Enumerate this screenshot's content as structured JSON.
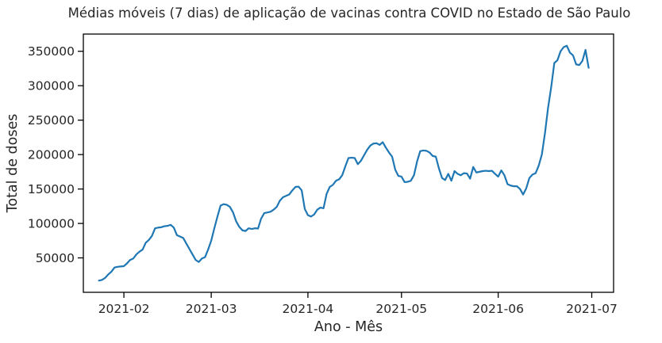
{
  "chart_data": {
    "type": "line",
    "title": "Médias móveis (7 dias) de aplicação de vacinas contra COVID no Estado de São Paulo",
    "xlabel": "Ano - Mês",
    "ylabel": "Total de doses",
    "x_ticks": [
      "2021-02",
      "2021-03",
      "2021-04",
      "2021-05",
      "2021-06",
      "2021-07"
    ],
    "y_ticks": [
      "50000",
      "100000",
      "150000",
      "200000",
      "250000",
      "300000",
      "350000"
    ],
    "x_range": [
      "2021-01-19",
      "2021-07-08"
    ],
    "ylim": [
      0,
      375000
    ],
    "grid": false,
    "line_color": "#1f77b4",
    "series": [
      {
        "values": [
          [
            "2021-01-24",
            17000
          ],
          [
            "2021-01-25",
            18000
          ],
          [
            "2021-01-26",
            21000
          ],
          [
            "2021-01-27",
            26000
          ],
          [
            "2021-01-28",
            30000
          ],
          [
            "2021-01-29",
            36000
          ],
          [
            "2021-01-30",
            37000
          ],
          [
            "2021-01-31",
            37500
          ],
          [
            "2021-02-01",
            38000
          ],
          [
            "2021-02-02",
            42000
          ],
          [
            "2021-02-03",
            47000
          ],
          [
            "2021-02-04",
            49000
          ],
          [
            "2021-02-05",
            55000
          ],
          [
            "2021-02-06",
            59000
          ],
          [
            "2021-02-07",
            62000
          ],
          [
            "2021-02-08",
            72000
          ],
          [
            "2021-02-09",
            76000
          ],
          [
            "2021-02-10",
            82000
          ],
          [
            "2021-02-11",
            93000
          ],
          [
            "2021-02-12",
            94000
          ],
          [
            "2021-02-13",
            94500
          ],
          [
            "2021-02-14",
            96000
          ],
          [
            "2021-02-15",
            96500
          ],
          [
            "2021-02-16",
            98000
          ],
          [
            "2021-02-17",
            94000
          ],
          [
            "2021-02-18",
            83000
          ],
          [
            "2021-02-19",
            81000
          ],
          [
            "2021-02-20",
            79000
          ],
          [
            "2021-02-21",
            71000
          ],
          [
            "2021-02-22",
            63000
          ],
          [
            "2021-02-23",
            55000
          ],
          [
            "2021-02-24",
            47000
          ],
          [
            "2021-02-25",
            44000
          ],
          [
            "2021-02-26",
            49000
          ],
          [
            "2021-02-27",
            51000
          ],
          [
            "2021-02-28",
            62000
          ],
          [
            "2021-03-01",
            75000
          ],
          [
            "2021-03-02",
            93000
          ],
          [
            "2021-03-03",
            110000
          ],
          [
            "2021-03-04",
            126000
          ],
          [
            "2021-03-05",
            128000
          ],
          [
            "2021-03-06",
            127000
          ],
          [
            "2021-03-07",
            124000
          ],
          [
            "2021-03-08",
            116000
          ],
          [
            "2021-03-09",
            103000
          ],
          [
            "2021-03-10",
            95000
          ],
          [
            "2021-03-11",
            90000
          ],
          [
            "2021-03-12",
            89000
          ],
          [
            "2021-03-13",
            93000
          ],
          [
            "2021-03-14",
            92000
          ],
          [
            "2021-03-15",
            93000
          ],
          [
            "2021-03-16",
            92500
          ],
          [
            "2021-03-17",
            107000
          ],
          [
            "2021-03-18",
            115000
          ],
          [
            "2021-03-19",
            116000
          ],
          [
            "2021-03-20",
            117000
          ],
          [
            "2021-03-21",
            120000
          ],
          [
            "2021-03-22",
            124000
          ],
          [
            "2021-03-23",
            133000
          ],
          [
            "2021-03-24",
            138000
          ],
          [
            "2021-03-25",
            140000
          ],
          [
            "2021-03-26",
            142000
          ],
          [
            "2021-03-27",
            148000
          ],
          [
            "2021-03-28",
            153000
          ],
          [
            "2021-03-29",
            153500
          ],
          [
            "2021-03-30",
            148000
          ],
          [
            "2021-03-31",
            121000
          ],
          [
            "2021-04-01",
            112000
          ],
          [
            "2021-04-02",
            110000
          ],
          [
            "2021-04-03",
            113000
          ],
          [
            "2021-04-04",
            120000
          ],
          [
            "2021-04-05",
            123000
          ],
          [
            "2021-04-06",
            122000
          ],
          [
            "2021-04-07",
            143000
          ],
          [
            "2021-04-08",
            153000
          ],
          [
            "2021-04-09",
            156000
          ],
          [
            "2021-04-10",
            162000
          ],
          [
            "2021-04-11",
            164000
          ],
          [
            "2021-04-12",
            170000
          ],
          [
            "2021-04-13",
            183000
          ],
          [
            "2021-04-14",
            195000
          ],
          [
            "2021-04-15",
            195500
          ],
          [
            "2021-04-16",
            195000
          ],
          [
            "2021-04-17",
            186000
          ],
          [
            "2021-04-18",
            191000
          ],
          [
            "2021-04-19",
            199000
          ],
          [
            "2021-04-20",
            207000
          ],
          [
            "2021-04-21",
            213000
          ],
          [
            "2021-04-22",
            216000
          ],
          [
            "2021-04-23",
            216500
          ],
          [
            "2021-04-24",
            214000
          ],
          [
            "2021-04-25",
            218000
          ],
          [
            "2021-04-26",
            210000
          ],
          [
            "2021-04-27",
            203000
          ],
          [
            "2021-04-28",
            197000
          ],
          [
            "2021-04-29",
            178000
          ],
          [
            "2021-04-30",
            169000
          ],
          [
            "2021-05-01",
            168000
          ],
          [
            "2021-05-02",
            160000
          ],
          [
            "2021-05-03",
            160500
          ],
          [
            "2021-05-04",
            162000
          ],
          [
            "2021-05-05",
            170000
          ],
          [
            "2021-05-06",
            190000
          ],
          [
            "2021-05-07",
            205000
          ],
          [
            "2021-05-08",
            206000
          ],
          [
            "2021-05-09",
            205500
          ],
          [
            "2021-05-10",
            203000
          ],
          [
            "2021-05-11",
            198000
          ],
          [
            "2021-05-12",
            197000
          ],
          [
            "2021-05-13",
            180000
          ],
          [
            "2021-05-14",
            166000
          ],
          [
            "2021-05-15",
            163000
          ],
          [
            "2021-05-16",
            172000
          ],
          [
            "2021-05-17",
            162000
          ],
          [
            "2021-05-18",
            176000
          ],
          [
            "2021-05-19",
            172000
          ],
          [
            "2021-05-20",
            170000
          ],
          [
            "2021-05-21",
            173000
          ],
          [
            "2021-05-22",
            172500
          ],
          [
            "2021-05-23",
            165000
          ],
          [
            "2021-05-24",
            182000
          ],
          [
            "2021-05-25",
            174000
          ],
          [
            "2021-05-26",
            175000
          ],
          [
            "2021-05-27",
            176000
          ],
          [
            "2021-05-28",
            176500
          ],
          [
            "2021-05-29",
            176000
          ],
          [
            "2021-05-30",
            176500
          ],
          [
            "2021-05-31",
            172000
          ],
          [
            "2021-06-01",
            168000
          ],
          [
            "2021-06-02",
            177000
          ],
          [
            "2021-06-03",
            170000
          ],
          [
            "2021-06-04",
            157000
          ],
          [
            "2021-06-05",
            155000
          ],
          [
            "2021-06-06",
            154000
          ],
          [
            "2021-06-07",
            154000
          ],
          [
            "2021-06-08",
            150000
          ],
          [
            "2021-06-09",
            142000
          ],
          [
            "2021-06-10",
            151000
          ],
          [
            "2021-06-11",
            166000
          ],
          [
            "2021-06-12",
            171000
          ],
          [
            "2021-06-13",
            173000
          ],
          [
            "2021-06-14",
            184000
          ],
          [
            "2021-06-15",
            200000
          ],
          [
            "2021-06-16",
            231000
          ],
          [
            "2021-06-17",
            268000
          ],
          [
            "2021-06-18",
            298000
          ],
          [
            "2021-06-19",
            333000
          ],
          [
            "2021-06-20",
            337000
          ],
          [
            "2021-06-21",
            350000
          ],
          [
            "2021-06-22",
            356000
          ],
          [
            "2021-06-23",
            358000
          ],
          [
            "2021-06-24",
            348000
          ],
          [
            "2021-06-25",
            344000
          ],
          [
            "2021-06-26",
            331000
          ],
          [
            "2021-06-27",
            330000
          ],
          [
            "2021-06-28",
            336000
          ],
          [
            "2021-06-29",
            352000
          ],
          [
            "2021-06-30",
            326000
          ]
        ]
      }
    ]
  }
}
